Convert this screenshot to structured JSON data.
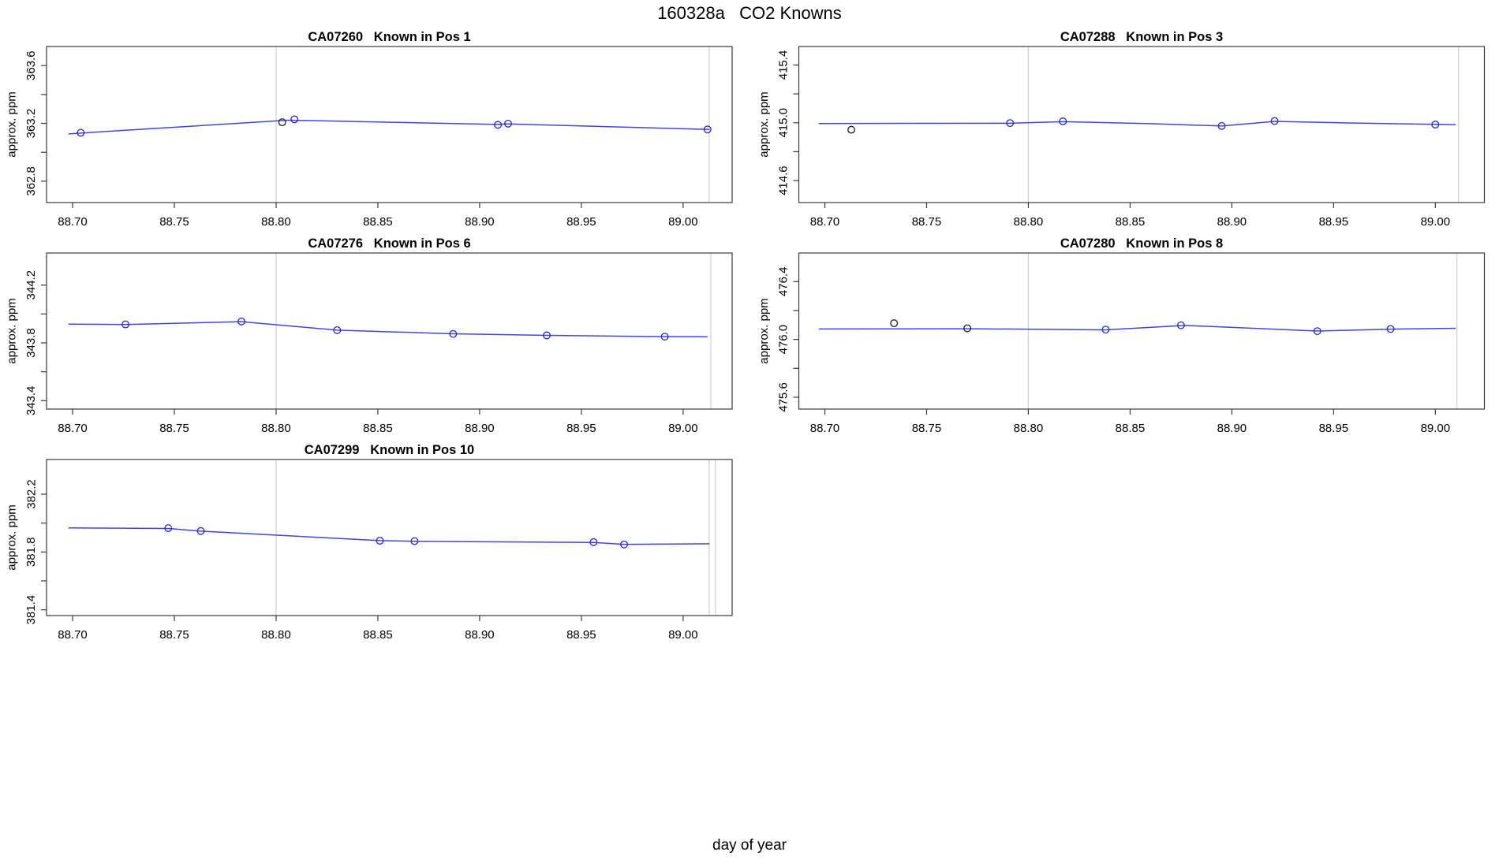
{
  "figure": {
    "main_title": "160328a   CO2 Knowns",
    "xlabel": "day of year",
    "ylabel": "approx. ppm"
  },
  "palette": {
    "line": "#4343e8",
    "point_blue": "#2525cc",
    "point_black": "#1a1a1a",
    "grid": "#cfcfcf",
    "axis": "#3a3a3a",
    "text": "#000000",
    "background": "#ffffff"
  },
  "chart_data": [
    {
      "id": "CA07260",
      "title": "CA07260   Known in Pos 1",
      "type": "line",
      "ylabel": "approx. ppm",
      "row": 0,
      "col": 0,
      "xlim": [
        88.6872,
        89.0241
      ],
      "ylim": [
        362.652,
        363.732
      ],
      "xticks": [
        88.7,
        88.75,
        88.8,
        88.85,
        88.9,
        88.95,
        89.0
      ],
      "xtick_labels": [
        "88.70",
        "88.75",
        "88.80",
        "88.85",
        "88.90",
        "88.95",
        "89.00"
      ],
      "yticks": [
        363.6,
        363.4,
        363.2,
        363.0,
        362.8
      ],
      "ytick_labels": [
        "363.6",
        "",
        "363.2",
        "",
        "362.8"
      ],
      "grid_x": [
        88.8,
        89.0128
      ],
      "line": [
        [
          88.698,
          363.127
        ],
        [
          88.704,
          363.133
        ],
        [
          88.806,
          363.222
        ],
        [
          88.909,
          363.193
        ],
        [
          88.914,
          363.196
        ],
        [
          89.013,
          363.158
        ]
      ],
      "points": [
        {
          "x": 88.704,
          "y": 363.135,
          "color": "blue"
        },
        {
          "x": 88.803,
          "y": 363.208,
          "color": "black"
        },
        {
          "x": 88.809,
          "y": 363.228,
          "color": "blue"
        },
        {
          "x": 88.909,
          "y": 363.19,
          "color": "blue"
        },
        {
          "x": 88.914,
          "y": 363.198,
          "color": "blue"
        },
        {
          "x": 89.012,
          "y": 363.158,
          "color": "blue"
        }
      ]
    },
    {
      "id": "CA07288",
      "title": "CA07288   Known in Pos 3",
      "type": "line",
      "ylabel": "approx. ppm",
      "row": 0,
      "col": 1,
      "xlim": [
        88.6872,
        89.0241
      ],
      "ylim": [
        414.448,
        415.528
      ],
      "xticks": [
        88.7,
        88.75,
        88.8,
        88.85,
        88.9,
        88.95,
        89.0
      ],
      "xtick_labels": [
        "88.70",
        "88.75",
        "88.80",
        "88.85",
        "88.90",
        "88.95",
        "89.00"
      ],
      "yticks": [
        415.4,
        415.2,
        415.0,
        414.8,
        414.6
      ],
      "ytick_labels": [
        "415.4",
        "",
        "415.0",
        "",
        "414.6"
      ],
      "grid_x": [
        88.8,
        89.0114
      ],
      "line": [
        [
          88.697,
          414.995
        ],
        [
          88.791,
          414.997
        ],
        [
          88.817,
          415.008
        ],
        [
          88.858,
          414.995
        ],
        [
          88.895,
          414.978
        ],
        [
          88.921,
          415.01
        ],
        [
          88.96,
          414.998
        ],
        [
          89.01,
          414.987
        ]
      ],
      "points": [
        {
          "x": 88.713,
          "y": 414.952,
          "color": "black"
        },
        {
          "x": 88.791,
          "y": 414.998,
          "color": "blue"
        },
        {
          "x": 88.817,
          "y": 415.01,
          "color": "blue"
        },
        {
          "x": 88.895,
          "y": 414.978,
          "color": "blue"
        },
        {
          "x": 88.921,
          "y": 415.012,
          "color": "blue"
        },
        {
          "x": 89.0,
          "y": 414.988,
          "color": "blue"
        }
      ]
    },
    {
      "id": "CA07276",
      "title": "CA07276   Known in Pos 6",
      "type": "line",
      "ylabel": "approx. ppm",
      "row": 1,
      "col": 0,
      "xlim": [
        88.6872,
        89.0241
      ],
      "ylim": [
        343.342,
        344.422
      ],
      "xticks": [
        88.7,
        88.75,
        88.8,
        88.85,
        88.9,
        88.95,
        89.0
      ],
      "xtick_labels": [
        "88.70",
        "88.75",
        "88.80",
        "88.85",
        "88.90",
        "88.95",
        "89.00"
      ],
      "yticks": [
        344.2,
        344.0,
        343.8,
        343.6,
        343.4
      ],
      "ytick_labels": [
        "344.2",
        "",
        "343.8",
        "",
        "343.4"
      ],
      "grid_x": [
        88.8,
        89.0136
      ],
      "line": [
        [
          88.698,
          343.93
        ],
        [
          88.726,
          343.927
        ],
        [
          88.783,
          343.947
        ],
        [
          88.83,
          343.888
        ],
        [
          88.887,
          343.863
        ],
        [
          88.933,
          343.852
        ],
        [
          88.991,
          343.843
        ],
        [
          89.012,
          343.842
        ]
      ],
      "points": [
        {
          "x": 88.726,
          "y": 343.928,
          "color": "blue"
        },
        {
          "x": 88.783,
          "y": 343.948,
          "color": "blue"
        },
        {
          "x": 88.83,
          "y": 343.888,
          "color": "blue"
        },
        {
          "x": 88.887,
          "y": 343.862,
          "color": "blue"
        },
        {
          "x": 88.933,
          "y": 343.852,
          "color": "blue"
        },
        {
          "x": 88.991,
          "y": 343.843,
          "color": "blue"
        }
      ]
    },
    {
      "id": "CA07280",
      "title": "CA07280   Known in Pos 8",
      "type": "line",
      "ylabel": "approx. ppm",
      "row": 1,
      "col": 1,
      "xlim": [
        88.6872,
        89.0241
      ],
      "ylim": [
        475.518,
        476.598
      ],
      "xticks": [
        88.7,
        88.75,
        88.8,
        88.85,
        88.9,
        88.95,
        89.0
      ],
      "xtick_labels": [
        "88.70",
        "88.75",
        "88.80",
        "88.85",
        "88.90",
        "88.95",
        "89.00"
      ],
      "yticks": [
        476.4,
        476.2,
        476.0,
        475.8,
        475.6
      ],
      "ytick_labels": [
        "476.4",
        "",
        "476.0",
        "",
        "475.6"
      ],
      "grid_x": [
        88.8,
        89.0106
      ],
      "line": [
        [
          88.697,
          476.072
        ],
        [
          88.77,
          476.074
        ],
        [
          88.838,
          476.066
        ],
        [
          88.877,
          476.097
        ],
        [
          88.942,
          476.058
        ],
        [
          88.978,
          476.071
        ],
        [
          89.01,
          476.077
        ]
      ],
      "points": [
        {
          "x": 88.734,
          "y": 476.112,
          "color": "black"
        },
        {
          "x": 88.77,
          "y": 476.077,
          "color": "black"
        },
        {
          "x": 88.838,
          "y": 476.068,
          "color": "blue"
        },
        {
          "x": 88.875,
          "y": 476.098,
          "color": "blue"
        },
        {
          "x": 88.942,
          "y": 476.057,
          "color": "blue"
        },
        {
          "x": 88.978,
          "y": 476.072,
          "color": "blue"
        }
      ]
    },
    {
      "id": "CA07299",
      "title": "CA07299   Known in Pos 10",
      "type": "line",
      "ylabel": "approx. ppm",
      "row": 2,
      "col": 0,
      "xlim": [
        88.6872,
        89.0241
      ],
      "ylim": [
        381.36,
        382.44
      ],
      "xticks": [
        88.7,
        88.75,
        88.8,
        88.85,
        88.9,
        88.95,
        89.0
      ],
      "xtick_labels": [
        "88.70",
        "88.75",
        "88.80",
        "88.85",
        "88.90",
        "88.95",
        "89.00"
      ],
      "yticks": [
        382.2,
        382.0,
        381.8,
        381.6,
        381.4
      ],
      "ytick_labels": [
        "382.2",
        "",
        "381.8",
        "",
        "381.4"
      ],
      "grid_x": [
        88.8,
        89.0128,
        89.0159
      ],
      "line": [
        [
          88.698,
          381.967
        ],
        [
          88.747,
          381.963
        ],
        [
          88.763,
          381.944
        ],
        [
          88.851,
          381.879
        ],
        [
          88.868,
          381.874
        ],
        [
          88.956,
          381.866
        ],
        [
          88.971,
          381.853
        ],
        [
          89.013,
          381.857
        ]
      ],
      "points": [
        {
          "x": 88.747,
          "y": 381.965,
          "color": "blue"
        },
        {
          "x": 88.763,
          "y": 381.945,
          "color": "blue"
        },
        {
          "x": 88.851,
          "y": 381.878,
          "color": "blue"
        },
        {
          "x": 88.868,
          "y": 381.875,
          "color": "blue"
        },
        {
          "x": 88.956,
          "y": 381.868,
          "color": "blue"
        },
        {
          "x": 88.971,
          "y": 381.852,
          "color": "blue"
        }
      ]
    }
  ]
}
